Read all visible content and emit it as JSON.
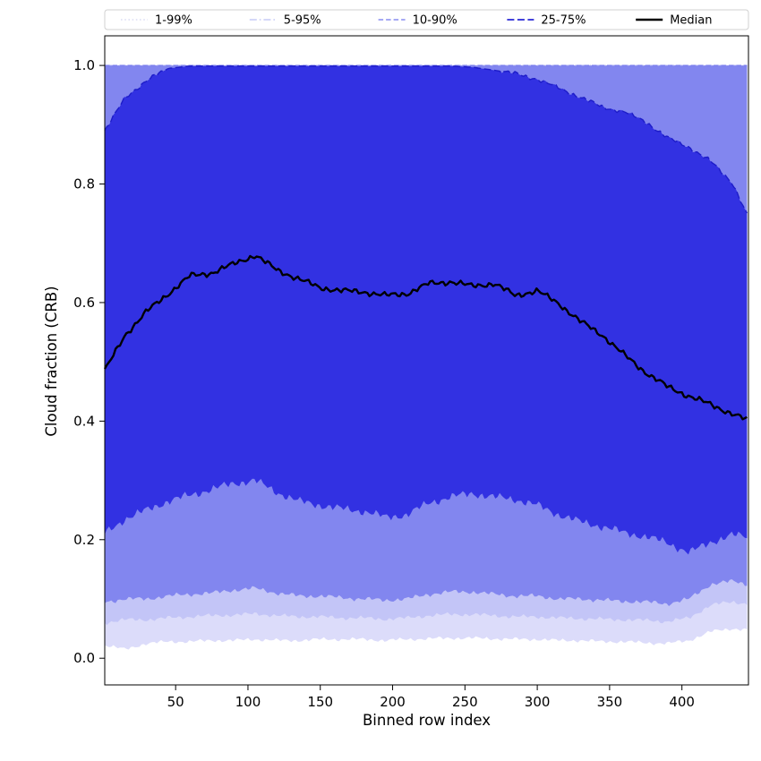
{
  "figure": {
    "background": "#ffffff"
  },
  "legend": {
    "entries": [
      {
        "label": "1-99%",
        "color": "#c9cbee",
        "style": "dotted",
        "width": 1
      },
      {
        "label": "5-95%",
        "color": "#aab0f2",
        "style": "dashdot",
        "width": 1
      },
      {
        "label": "10-90%",
        "color": "#7276ee",
        "style": "dashed",
        "width": 1.2
      },
      {
        "label": "25-75%",
        "color": "#2a29d6",
        "style": "dashed_long",
        "width": 1.8
      },
      {
        "label": "Median",
        "color": "#000000",
        "style": "solid",
        "width": 2.6
      }
    ]
  },
  "chart_data": {
    "type": "area",
    "title": "",
    "xlabel": "Binned row index",
    "ylabel": "Cloud fraction (CRB)",
    "xlim": [
      1,
      446
    ],
    "ylim": [
      -0.045,
      1.05
    ],
    "x_ticks": [
      50,
      100,
      150,
      200,
      250,
      300,
      350,
      400
    ],
    "y_ticks": [
      0.0,
      0.2,
      0.4,
      0.6,
      0.8,
      1.0
    ],
    "grid": false,
    "legend_position": "top",
    "x": [
      1,
      15,
      30,
      45,
      60,
      75,
      90,
      105,
      120,
      135,
      150,
      165,
      180,
      195,
      210,
      225,
      240,
      255,
      270,
      285,
      300,
      315,
      330,
      345,
      360,
      375,
      390,
      405,
      420,
      435,
      445
    ],
    "series": [
      {
        "name": "p1",
        "values": [
          0.022,
          0.015,
          0.025,
          0.028,
          0.028,
          0.03,
          0.03,
          0.032,
          0.03,
          0.03,
          0.032,
          0.032,
          0.032,
          0.03,
          0.032,
          0.033,
          0.034,
          0.034,
          0.033,
          0.032,
          0.032,
          0.03,
          0.03,
          0.028,
          0.028,
          0.026,
          0.025,
          0.03,
          0.045,
          0.05,
          0.048
        ]
      },
      {
        "name": "p5",
        "values": [
          0.06,
          0.065,
          0.065,
          0.068,
          0.07,
          0.072,
          0.073,
          0.075,
          0.072,
          0.07,
          0.07,
          0.068,
          0.068,
          0.066,
          0.068,
          0.072,
          0.074,
          0.074,
          0.072,
          0.07,
          0.07,
          0.068,
          0.067,
          0.066,
          0.065,
          0.064,
          0.062,
          0.068,
          0.09,
          0.095,
          0.092
        ]
      },
      {
        "name": "p10",
        "values": [
          0.095,
          0.1,
          0.1,
          0.105,
          0.108,
          0.11,
          0.115,
          0.118,
          0.11,
          0.105,
          0.105,
          0.102,
          0.1,
          0.098,
          0.1,
          0.108,
          0.112,
          0.112,
          0.108,
          0.105,
          0.105,
          0.1,
          0.1,
          0.098,
          0.096,
          0.095,
          0.092,
          0.1,
          0.125,
          0.13,
          0.125
        ]
      },
      {
        "name": "p25",
        "values": [
          0.21,
          0.235,
          0.25,
          0.265,
          0.275,
          0.285,
          0.295,
          0.3,
          0.28,
          0.265,
          0.258,
          0.252,
          0.248,
          0.238,
          0.242,
          0.262,
          0.272,
          0.278,
          0.272,
          0.268,
          0.258,
          0.242,
          0.23,
          0.222,
          0.212,
          0.205,
          0.195,
          0.178,
          0.196,
          0.208,
          0.205
        ]
      },
      {
        "name": "median",
        "values": [
          0.485,
          0.545,
          0.585,
          0.615,
          0.645,
          0.65,
          0.665,
          0.68,
          0.655,
          0.64,
          0.625,
          0.62,
          0.618,
          0.612,
          0.615,
          0.632,
          0.635,
          0.628,
          0.632,
          0.612,
          0.62,
          0.598,
          0.568,
          0.545,
          0.512,
          0.482,
          0.458,
          0.442,
          0.428,
          0.412,
          0.402
        ]
      },
      {
        "name": "p75",
        "values": [
          0.89,
          0.945,
          0.975,
          0.995,
          0.999,
          0.999,
          0.999,
          0.999,
          0.999,
          0.999,
          0.999,
          0.999,
          0.999,
          0.999,
          0.999,
          0.999,
          0.999,
          0.997,
          0.992,
          0.986,
          0.977,
          0.962,
          0.946,
          0.93,
          0.922,
          0.905,
          0.878,
          0.862,
          0.838,
          0.802,
          0.748
        ]
      },
      {
        "name": "p90",
        "constant": 1.0
      },
      {
        "name": "p95",
        "constant": 1.0
      },
      {
        "name": "p99",
        "constant": 1.0
      }
    ],
    "bands": [
      {
        "name": "1-99%",
        "lower": "p1",
        "upper": "p99",
        "fill": "#dcdcfa"
      },
      {
        "name": "5-95%",
        "lower": "p5",
        "upper": "p95",
        "fill": "#c3c5f7"
      },
      {
        "name": "10-90%",
        "lower": "p10",
        "upper": "p90",
        "fill": "#8286ef"
      },
      {
        "name": "25-75%",
        "lower": "p25",
        "upper": "p75",
        "fill": "#3231e2"
      }
    ],
    "lines": [
      {
        "series": "p99",
        "style": "dotted",
        "color": "#b9bce8",
        "width": 1
      },
      {
        "series": "p95",
        "style": "dashdot",
        "color": "#9da1f0",
        "width": 1
      },
      {
        "series": "p90",
        "style": "dashed",
        "color": "#7276ee",
        "width": 1.1
      },
      {
        "series": "p75",
        "style": "dashed_long",
        "color": "#1d1cc9",
        "width": 1.4
      },
      {
        "series": "median",
        "style": "solid",
        "color": "#000000",
        "width": 2.4
      }
    ]
  }
}
